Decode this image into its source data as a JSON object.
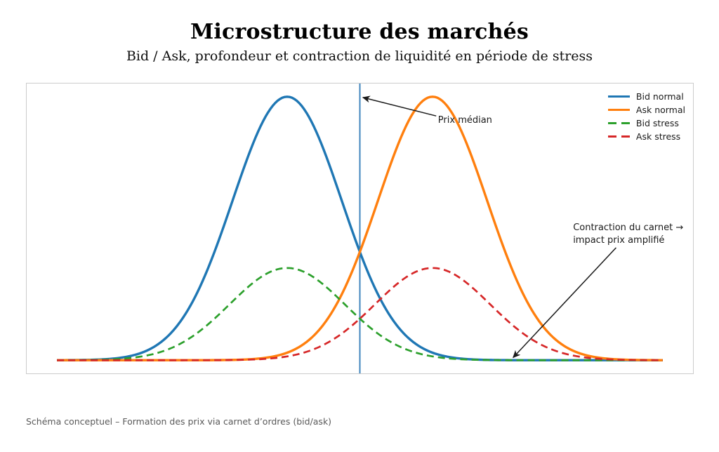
{
  "header": {
    "title": "Microstructure des marchés",
    "subtitle": "Bid / Ask, profondeur et contraction de liquidité en période de stress"
  },
  "footer": {
    "note": "Schéma conceptuel – Formation des prix via carnet d’ordres (bid/ask)"
  },
  "chart_data": {
    "type": "line",
    "title": "Microstructure des marchés",
    "subtitle": "Bid / Ask, profondeur et contraction de liquidité en période de stress",
    "curve_shape": "gaussian",
    "x_range": [
      0,
      100
    ],
    "y_range": [
      0,
      1
    ],
    "axis_margin": 0.05,
    "grid": false,
    "ticks": "none",
    "frame_color": "#cccccc",
    "legend_position": "upper right",
    "legend_frame": false,
    "series": [
      {
        "name": "Bid normal",
        "color": "#1f77b4",
        "line_style": "solid",
        "line_width": 3.4,
        "center": 38,
        "sigma": 9.0,
        "amplitude": 1.0
      },
      {
        "name": "Ask normal",
        "color": "#ff7f0e",
        "line_style": "solid",
        "line_width": 3.4,
        "center": 62,
        "sigma": 9.0,
        "amplitude": 1.0
      },
      {
        "name": "Bid stress",
        "color": "#2ca02c",
        "line_style": "dashed",
        "line_width": 2.7,
        "center": 38,
        "sigma": 9.5,
        "amplitude": 0.35
      },
      {
        "name": "Ask stress",
        "color": "#d62728",
        "line_style": "dashed",
        "line_width": 2.7,
        "center": 62,
        "sigma": 9.5,
        "amplitude": 0.35
      }
    ],
    "median_line": {
      "x": 50,
      "color": "#4186be",
      "width": 2,
      "label": "Prix médian"
    },
    "arrow_color": "#1a1a1a",
    "annotations": [
      {
        "id": "prix-median",
        "text": "Prix médian",
        "text_xy": [
          62.9,
          0.932
        ],
        "arrow_from": [
          62.6,
          0.927
        ],
        "arrow_to": [
          50.5,
          0.997
        ]
      },
      {
        "id": "contraction",
        "text": "Contraction du carnet →\nimpact prix amplifié",
        "text_xy": [
          85.2,
          0.525
        ],
        "arrow_from": [
          92.3,
          0.427
        ],
        "arrow_to": [
          75.3,
          0.01
        ]
      }
    ]
  }
}
